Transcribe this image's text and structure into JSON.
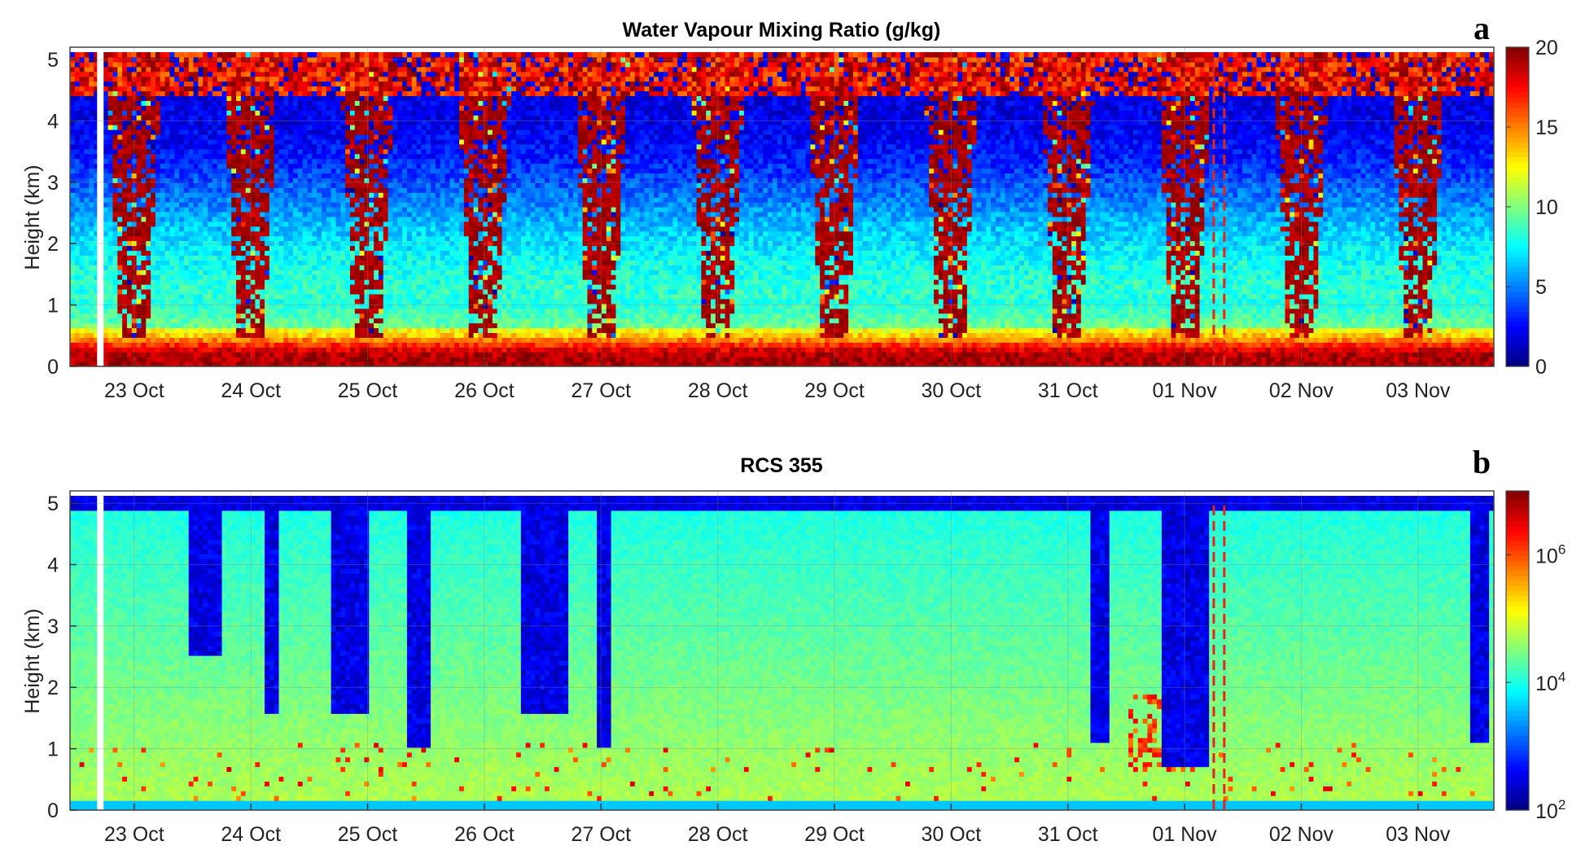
{
  "chart_data": [
    {
      "type": "heatmap",
      "panel_letter": "a",
      "title": "Water Vapour Mixing Ratio (g/kg)",
      "ylabel": "Height (km)",
      "xlabel": "",
      "x_ticks": [
        "23 Oct",
        "24 Oct",
        "25 Oct",
        "26 Oct",
        "27 Oct",
        "28 Oct",
        "29 Oct",
        "30 Oct",
        "31 Oct",
        "01 Nov",
        "02 Nov",
        "03 Nov"
      ],
      "y_ticks": [
        "0",
        "1",
        "2",
        "3",
        "4",
        "5"
      ],
      "xlim_days": [
        22.45,
        34.65
      ],
      "ylim": [
        0,
        5.2
      ],
      "colorbar": {
        "scale": "linear",
        "range": [
          0,
          20
        ],
        "ticks": [
          "0",
          "5",
          "10",
          "15",
          "20"
        ],
        "colormap": "jet"
      },
      "night_columns_day_fraction": [
        0.05,
        0.95
      ],
      "marker_lines_x_days": [
        32.25,
        32.34
      ],
      "marker_color": "#e8231a",
      "data_gap_x_day": 22.71
    },
    {
      "type": "heatmap",
      "panel_letter": "b",
      "title": "RCS 355",
      "ylabel": "Height (km)",
      "xlabel": "",
      "x_ticks": [
        "23 Oct",
        "24 Oct",
        "25 Oct",
        "26 Oct",
        "27 Oct",
        "28 Oct",
        "29 Oct",
        "30 Oct",
        "31 Oct",
        "01 Nov",
        "02 Nov",
        "03 Nov"
      ],
      "y_ticks": [
        "0",
        "1",
        "2",
        "3",
        "4",
        "5"
      ],
      "xlim_days": [
        22.45,
        34.65
      ],
      "ylim": [
        0,
        5.2
      ],
      "colorbar": {
        "scale": "log",
        "range": [
          100,
          10000000
        ],
        "ticks": [
          {
            "base": "10",
            "exp": "2"
          },
          {
            "base": "10",
            "exp": "4"
          },
          {
            "base": "10",
            "exp": "6"
          }
        ],
        "colormap": "jet"
      },
      "marker_lines_x_days": [
        32.25,
        32.34
      ],
      "marker_color": "#e8231a",
      "data_gap_x_day": 22.71
    }
  ]
}
